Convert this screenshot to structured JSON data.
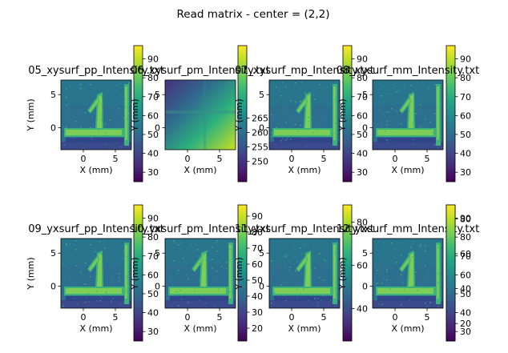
{
  "suptitle": "Read matrix - center = (2,2)",
  "chart_data": [
    {
      "type": "heatmap",
      "title": "05_xysurf_pp_Intensity.txt",
      "xlabel": "X (mm)",
      "ylabel": "Y (mm)",
      "xticks": [
        0,
        5
      ],
      "yticks": [
        0,
        5
      ],
      "xlim": [
        -3.5,
        7.5
      ],
      "ylim": [
        -3.3,
        7.2
      ],
      "colorbar": {
        "min": 25,
        "max": 97,
        "ticks": [
          30,
          40,
          50,
          60,
          70,
          80,
          90
        ]
      },
      "pattern": "glyph"
    },
    {
      "type": "heatmap",
      "title": "06_xysurf_pm_Intensity.txt",
      "xlabel": "X (mm)",
      "ylabel": "Y (mm)",
      "xticks": [
        0,
        5
      ],
      "yticks": [
        0,
        5
      ],
      "xlim": [
        -3.5,
        7.5
      ],
      "ylim": [
        -3.3,
        7.2
      ],
      "colorbar": {
        "min": 243,
        "max": 290,
        "ticks": [
          250,
          255,
          260,
          265
        ]
      },
      "pattern": "gradient"
    },
    {
      "type": "heatmap",
      "title": "07_xysurf_mp_Intensity.txt",
      "xlabel": "X (mm)",
      "ylabel": "Y (mm)",
      "xticks": [
        0,
        5
      ],
      "yticks": [
        0,
        5
      ],
      "xlim": [
        -3.5,
        7.5
      ],
      "ylim": [
        -3.3,
        7.2
      ],
      "colorbar": {
        "min": 25,
        "max": 97,
        "ticks": [
          30,
          40,
          50,
          60,
          70,
          80,
          90
        ]
      },
      "pattern": "glyph"
    },
    {
      "type": "heatmap",
      "title": "08_xysurf_mm_Intensity.txt",
      "xlabel": "X (mm)",
      "ylabel": "Y (mm)",
      "xticks": [
        0,
        5
      ],
      "yticks": [
        0,
        5
      ],
      "xlim": [
        -3.5,
        7.5
      ],
      "ylim": [
        -3.3,
        7.2
      ],
      "colorbar": {
        "min": 25,
        "max": 97,
        "ticks": [
          30,
          40,
          50,
          60,
          70,
          80,
          90
        ]
      },
      "pattern": "glyph"
    },
    {
      "type": "heatmap",
      "title": "09_yxsurf_pp_Intensity.txt",
      "xlabel": "X (mm)",
      "ylabel": "Y (mm)",
      "xticks": [
        0,
        5
      ],
      "yticks": [
        0,
        5
      ],
      "xlim": [
        -3.5,
        7.5
      ],
      "ylim": [
        -3.3,
        7.2
      ],
      "colorbar": {
        "min": 25,
        "max": 97,
        "ticks": [
          30,
          40,
          50,
          60,
          70,
          80,
          90
        ]
      },
      "pattern": "glyph"
    },
    {
      "type": "heatmap",
      "title": "10_yxsurf_pm_Intensity.txt",
      "xlabel": "X (mm)",
      "ylabel": "Y (mm)",
      "xticks": [
        0,
        5
      ],
      "yticks": [
        0,
        5
      ],
      "xlim": [
        -3.5,
        7.5
      ],
      "ylim": [
        -3.3,
        7.2
      ],
      "colorbar": {
        "min": 12,
        "max": 97,
        "ticks": [
          20,
          30,
          40,
          50,
          60,
          70,
          80,
          90
        ]
      },
      "pattern": "glyph"
    },
    {
      "type": "heatmap",
      "title": "11_yxsurf_mp_Intensity.txt",
      "xlabel": "X (mm)",
      "ylabel": "Y (mm)",
      "xticks": [
        0,
        5
      ],
      "yticks": [
        0,
        5
      ],
      "xlim": [
        -3.5,
        7.5
      ],
      "ylim": [
        -3.3,
        7.2
      ],
      "colorbar": {
        "min": 25,
        "max": 88,
        "ticks": [
          40,
          60,
          80
        ]
      },
      "pattern": "glyph"
    },
    {
      "type": "heatmap",
      "title": "12_yxsurf_mm_Intensity.txt",
      "xlabel": "X (mm)",
      "ylabel": "Y (mm)",
      "xticks": [
        0,
        5
      ],
      "yticks": [
        0,
        5
      ],
      "xlim": [
        -3.5,
        7.5
      ],
      "ylim": [
        -3.3,
        7.2
      ],
      "colorbar": {
        "min": 25,
        "max": 97,
        "ticks": [
          30,
          40,
          50,
          60,
          70,
          80,
          90
        ]
      },
      "pattern": "glyph"
    },
    {
      "type": "heatmap",
      "title": "",
      "xlabel": "",
      "ylabel": "",
      "xticks": [],
      "yticks": [],
      "colorbar": {
        "min": 10,
        "max": 88,
        "ticks": [
          20,
          40,
          60,
          80
        ]
      },
      "pattern": "none"
    }
  ]
}
